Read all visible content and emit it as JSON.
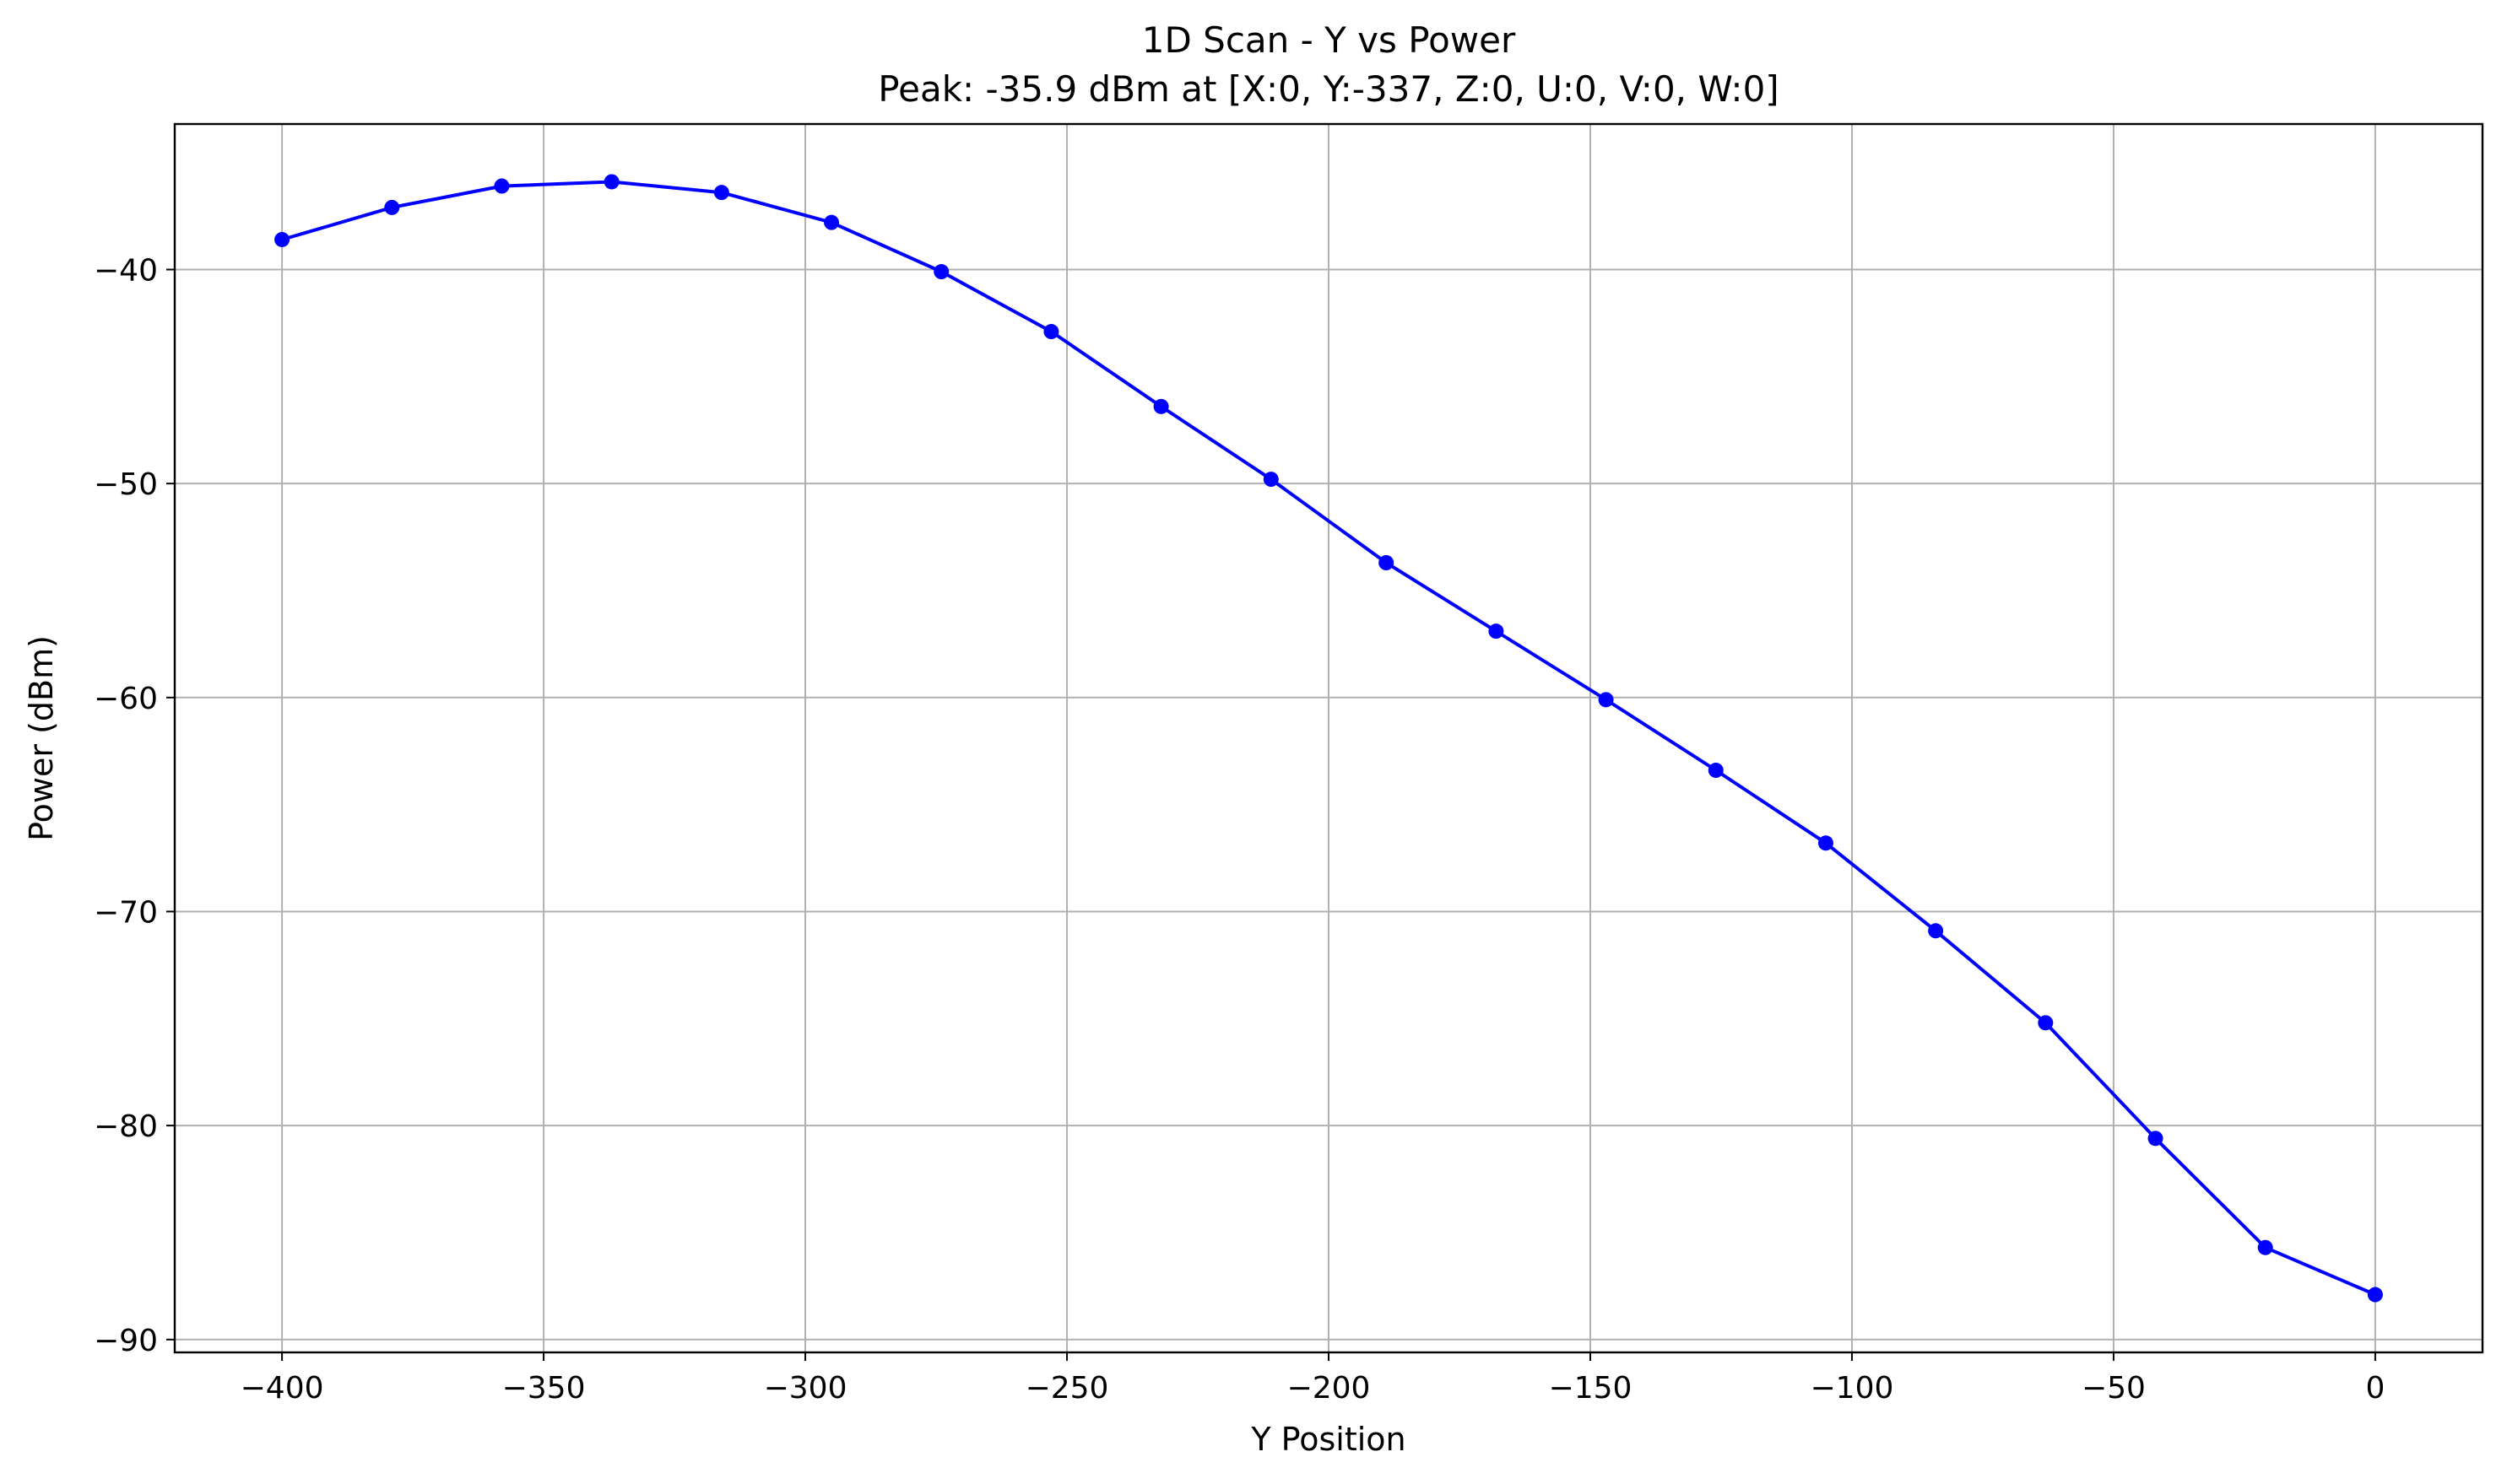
{
  "chart_data": {
    "type": "line",
    "title": "1D Scan - Y vs Power",
    "subtitle": "Peak: -35.9 dBm at [X:0, Y:-337, Z:0, U:0, V:0, W:0]",
    "xlabel": "Y Position",
    "ylabel": "Power (dBm)",
    "xlim": [
      -420.5,
      20.5
    ],
    "ylim": [
      -90.6,
      -33.2
    ],
    "x_ticks": [
      -400,
      -350,
      -300,
      -250,
      -200,
      -150,
      -100,
      -50,
      0
    ],
    "x_tick_labels": [
      "−400",
      "−350",
      "−300",
      "−250",
      "−200",
      "−150",
      "−100",
      "−50",
      "0"
    ],
    "y_ticks": [
      -90,
      -80,
      -70,
      -60,
      -50,
      -40
    ],
    "y_tick_labels": [
      "−90",
      "−80",
      "−70",
      "−60",
      "−50",
      "−40"
    ],
    "grid": true,
    "legend": "none",
    "series": [
      {
        "color": "#0000ff",
        "marker": "circle",
        "x": [
          -400,
          -379,
          -358,
          -337,
          -316,
          -295,
          -274,
          -253,
          -232,
          -211,
          -189,
          -168,
          -147,
          -126,
          -105,
          -84,
          -63,
          -42,
          -21,
          0
        ],
        "y": [
          -38.6,
          -37.1,
          -36.1,
          -35.9,
          -36.4,
          -37.8,
          -40.1,
          -42.9,
          -46.4,
          -49.8,
          -53.7,
          -56.9,
          -60.1,
          -63.4,
          -66.8,
          -70.9,
          -75.2,
          -80.6,
          -85.7,
          -87.9
        ]
      }
    ]
  }
}
